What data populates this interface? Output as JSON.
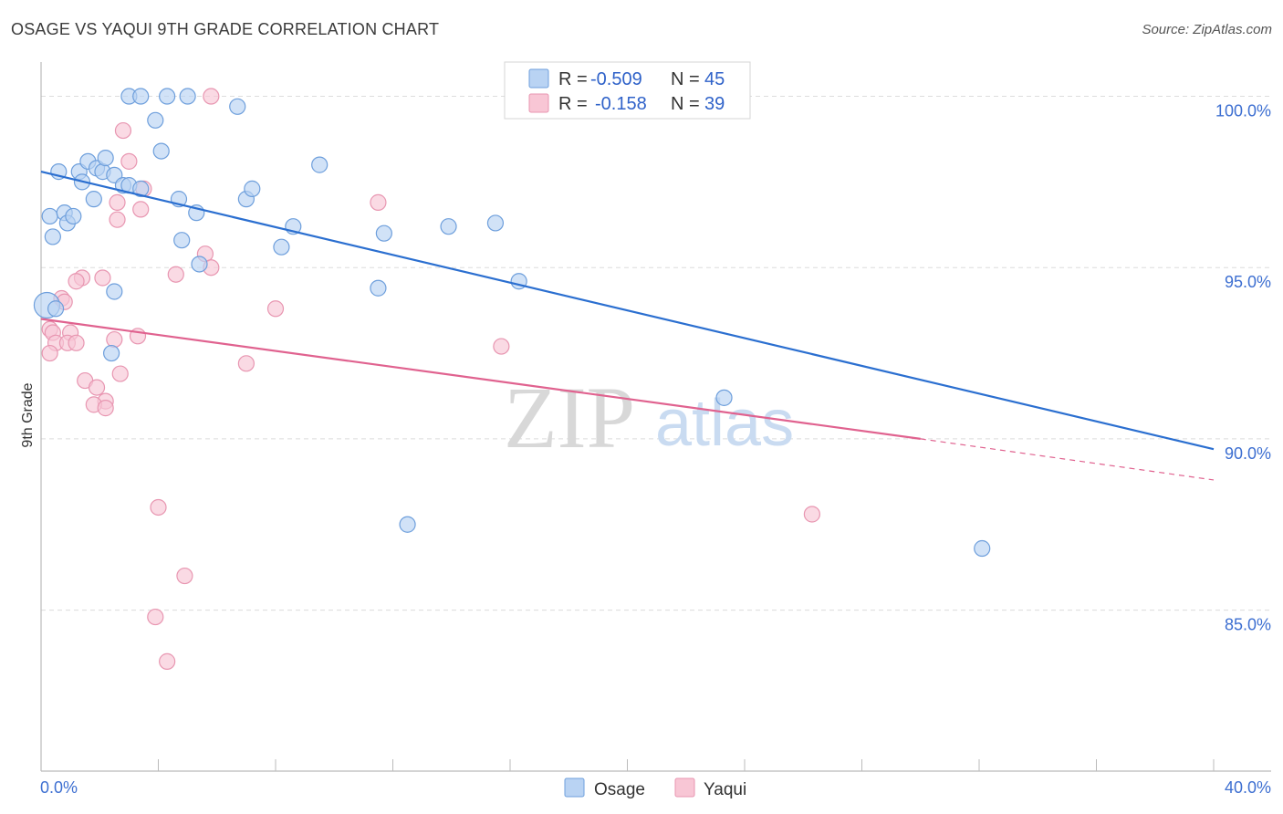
{
  "header": {
    "title": "OSAGE VS YAQUI 9TH GRADE CORRELATION CHART",
    "source": "Source: ZipAtlas.com"
  },
  "colors": {
    "osage_fill": "#b9d3f3",
    "osage_stroke": "#6e9fdc",
    "osage_line": "#2b6fd0",
    "yaqui_fill": "#f8c6d5",
    "yaqui_stroke": "#e896b1",
    "yaqui_line": "#e0628f",
    "grid": "#dcdcdc",
    "tick_text": "#3d6fd1"
  },
  "watermark": {
    "zip": "ZIP",
    "atlas": "atlas"
  },
  "legend_box": {
    "rows": [
      {
        "r_label": "R =",
        "r_value": "-0.509",
        "n_label": "N =",
        "n_value": "45"
      },
      {
        "r_label": "R =",
        "r_value": "-0.158",
        "n_label": "N =",
        "n_value": "39"
      }
    ]
  },
  "bottom_legend": {
    "series1": "Osage",
    "series2": "Yaqui"
  },
  "chart_data": {
    "type": "scatter",
    "title": "OSAGE VS YAQUI 9TH GRADE CORRELATION CHART",
    "xlabel": "",
    "ylabel": "9th Grade",
    "xlim": [
      0,
      40
    ],
    "ylim": [
      80.3,
      101
    ],
    "x_tick_labels": [
      "0.0%",
      "40.0%"
    ],
    "y_ticks": [
      85,
      90,
      95,
      100
    ],
    "y_tick_labels": [
      "85.0%",
      "90.0%",
      "95.0%",
      "100.0%"
    ],
    "grid": true,
    "legend_position": "top-center",
    "series": [
      {
        "name": "Osage",
        "r": -0.509,
        "n": 45,
        "trend": {
          "x0": 0.0,
          "y0": 97.8,
          "x1": 40.0,
          "y1": 89.7
        },
        "points": [
          [
            0.2,
            93.9
          ],
          [
            0.3,
            96.5
          ],
          [
            0.4,
            95.9
          ],
          [
            0.6,
            97.8
          ],
          [
            0.8,
            96.6
          ],
          [
            0.9,
            96.3
          ],
          [
            1.1,
            96.5
          ],
          [
            1.3,
            97.8
          ],
          [
            1.4,
            97.5
          ],
          [
            1.6,
            98.1
          ],
          [
            1.8,
            97.0
          ],
          [
            1.9,
            97.9
          ],
          [
            2.1,
            97.8
          ],
          [
            2.2,
            98.2
          ],
          [
            2.5,
            97.7
          ],
          [
            2.8,
            97.4
          ],
          [
            3.0,
            97.4
          ],
          [
            3.4,
            97.3
          ],
          [
            3.0,
            100.0
          ],
          [
            3.4,
            100.0
          ],
          [
            3.9,
            99.3
          ],
          [
            4.1,
            98.4
          ],
          [
            4.3,
            100.0
          ],
          [
            5.0,
            100.0
          ],
          [
            4.7,
            97.0
          ],
          [
            4.8,
            95.8
          ],
          [
            5.3,
            96.6
          ],
          [
            5.4,
            95.1
          ],
          [
            6.7,
            99.7
          ],
          [
            7.0,
            97.0
          ],
          [
            7.2,
            97.3
          ],
          [
            8.6,
            96.2
          ],
          [
            8.2,
            95.6
          ],
          [
            9.5,
            98.0
          ],
          [
            11.5,
            94.4
          ],
          [
            11.7,
            96.0
          ],
          [
            13.9,
            96.2
          ],
          [
            15.5,
            96.3
          ],
          [
            16.3,
            94.6
          ],
          [
            2.5,
            94.3
          ],
          [
            2.4,
            92.5
          ],
          [
            12.5,
            87.5
          ],
          [
            23.3,
            91.2
          ],
          [
            32.1,
            86.8
          ],
          [
            0.5,
            93.8
          ]
        ]
      },
      {
        "name": "Yaqui",
        "r": -0.158,
        "n": 39,
        "trend": {
          "x0": 0.0,
          "y0": 93.5,
          "x1": 30.0,
          "y1": 90.0,
          "dash_x1": 40.0,
          "dash_y1": 88.8
        },
        "points": [
          [
            5.8,
            100.0
          ],
          [
            2.8,
            99.0
          ],
          [
            3.0,
            98.1
          ],
          [
            3.5,
            97.3
          ],
          [
            2.6,
            96.9
          ],
          [
            2.6,
            96.4
          ],
          [
            3.4,
            96.7
          ],
          [
            11.5,
            96.9
          ],
          [
            5.6,
            95.4
          ],
          [
            5.8,
            95.0
          ],
          [
            4.6,
            94.8
          ],
          [
            2.1,
            94.7
          ],
          [
            1.4,
            94.7
          ],
          [
            1.2,
            94.6
          ],
          [
            0.7,
            94.1
          ],
          [
            0.8,
            94.0
          ],
          [
            8.0,
            93.8
          ],
          [
            0.3,
            93.2
          ],
          [
            0.4,
            93.1
          ],
          [
            1.0,
            93.1
          ],
          [
            3.3,
            93.0
          ],
          [
            2.5,
            92.9
          ],
          [
            0.5,
            92.8
          ],
          [
            0.9,
            92.8
          ],
          [
            1.2,
            92.8
          ],
          [
            0.3,
            92.5
          ],
          [
            7.0,
            92.2
          ],
          [
            2.7,
            91.9
          ],
          [
            1.5,
            91.7
          ],
          [
            1.9,
            91.5
          ],
          [
            2.2,
            91.1
          ],
          [
            1.8,
            91.0
          ],
          [
            2.2,
            90.9
          ],
          [
            15.7,
            92.7
          ],
          [
            4.0,
            88.0
          ],
          [
            26.3,
            87.8
          ],
          [
            4.9,
            86.0
          ],
          [
            3.9,
            84.8
          ],
          [
            4.3,
            83.5
          ]
        ]
      }
    ]
  }
}
